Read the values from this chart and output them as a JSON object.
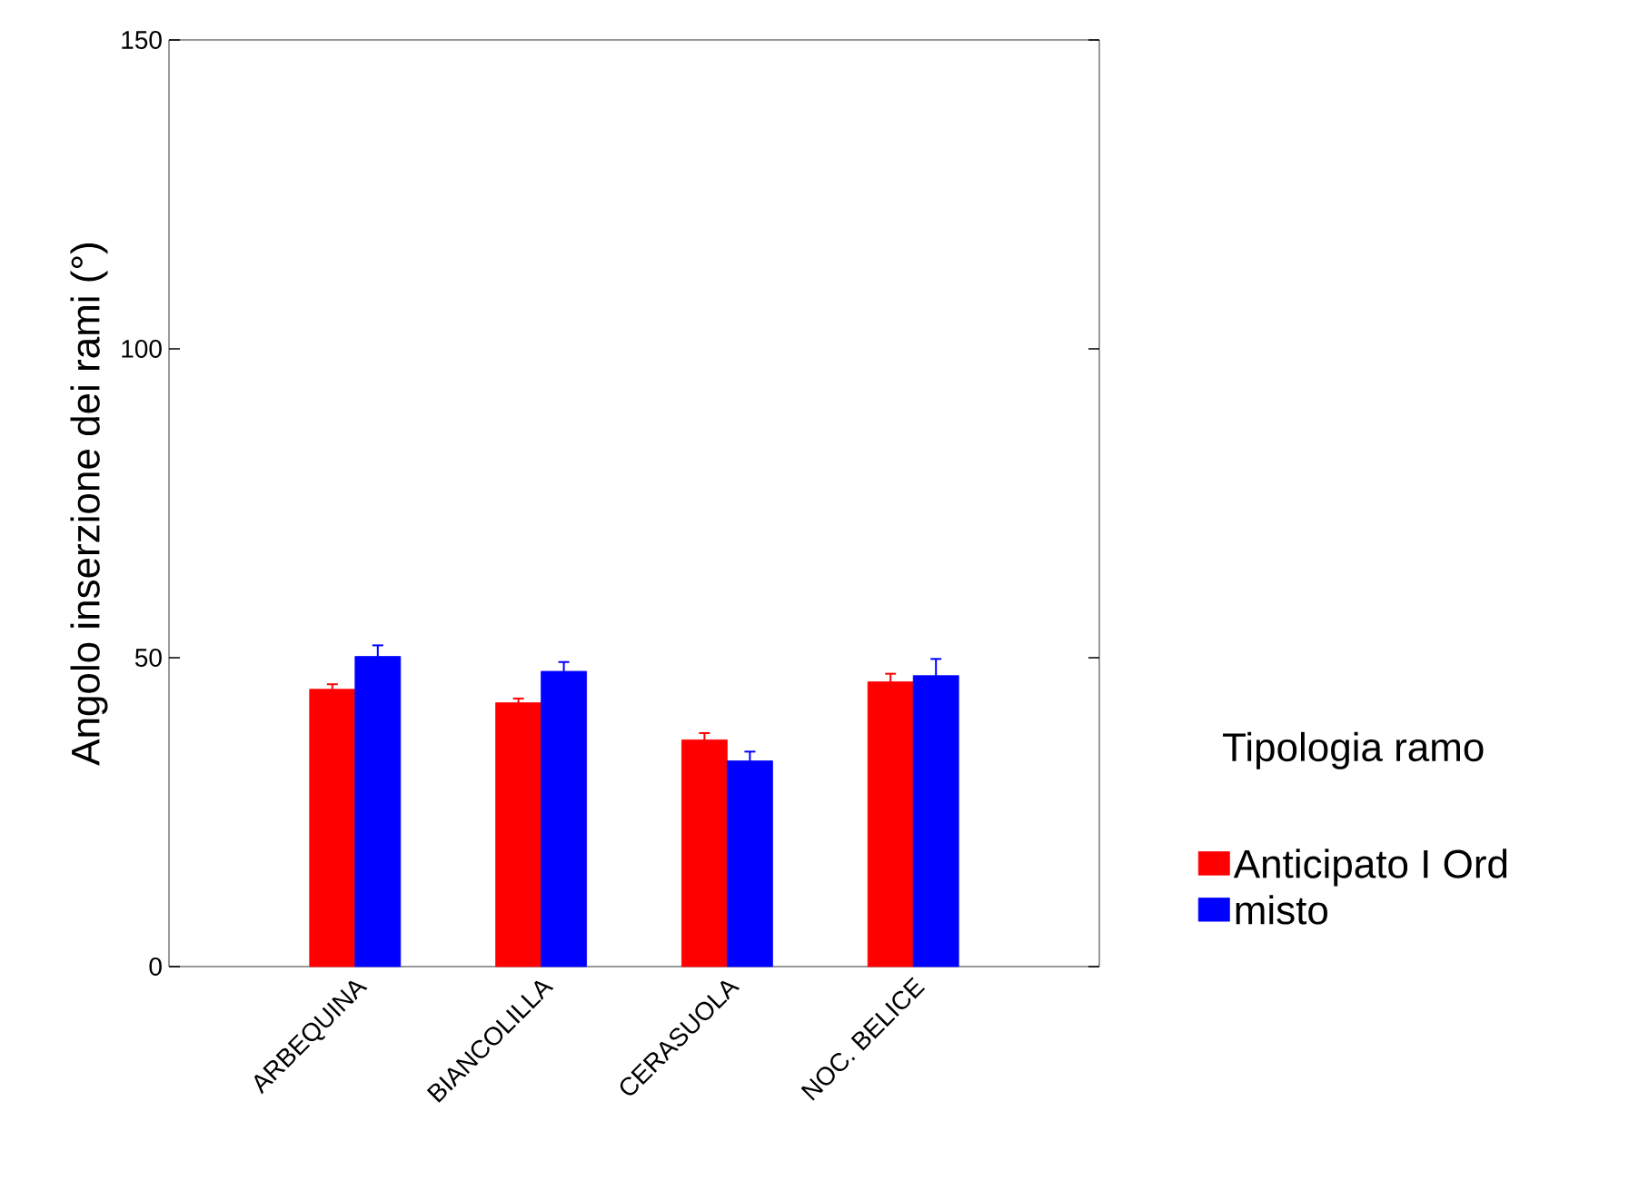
{
  "chart_data": {
    "type": "bar",
    "ylabel": "Angolo inserzione dei rami (°)",
    "legend_title": "Tipologia ramo",
    "categories": [
      "ARBEQUINA",
      "BIANCOLILLA",
      "CERASUOLA",
      "NOC. BELICE"
    ],
    "series": [
      {
        "name": "Anticipato I Ord",
        "color": "#ff0000",
        "values": [
          44.9,
          42.7,
          36.7,
          46.1
        ],
        "errors": [
          0.8,
          0.7,
          1.1,
          1.3
        ]
      },
      {
        "name": "misto",
        "color": "#0000ff",
        "values": [
          50.2,
          47.8,
          33.3,
          47.1
        ],
        "errors": [
          1.8,
          1.5,
          1.5,
          2.7
        ]
      }
    ],
    "ylim": [
      0,
      150
    ],
    "yticks": [
      0,
      50,
      100,
      150
    ],
    "grid": false,
    "legend": "right"
  }
}
